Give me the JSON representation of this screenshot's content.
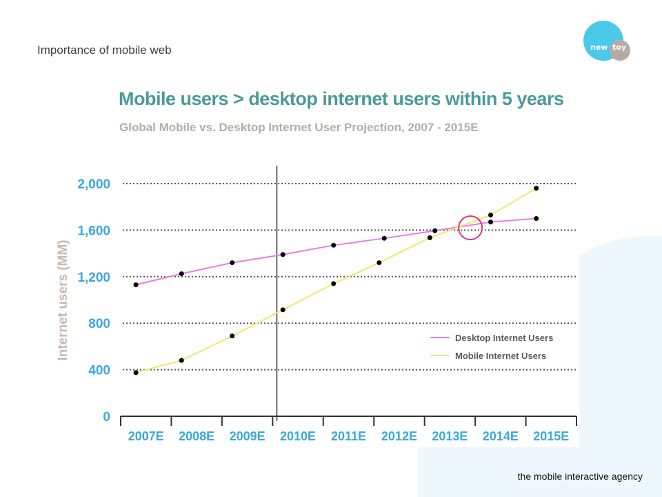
{
  "slide": {
    "title": "Importance of mobile web",
    "footer": "the mobile interactive agency"
  },
  "logo": {
    "word1": "new",
    "word2": "toy"
  },
  "colors": {
    "accent_teal": "#4a9a9a",
    "axis_blue": "#3aa8dc",
    "ylabel_gray": "#c5b9b1",
    "desktop_line": "#e87ce8",
    "mobile_line": "#f5e56a",
    "highlight_circle": "#e6336e",
    "background_shape": "#eef7fb"
  },
  "chart_data": {
    "type": "line",
    "title": "Mobile users > desktop internet users within 5 years",
    "subtitle": "Global Mobile vs. Desktop Internet User Projection, 2007 - 2015E",
    "xlabel": "",
    "ylabel": "Internet users (MM)",
    "categories": [
      "2007E",
      "2008E",
      "2009E",
      "2010E",
      "2011E",
      "2012E",
      "2013E",
      "2014E",
      "2015E"
    ],
    "ylim": [
      0,
      2000
    ],
    "yticks": [
      "0",
      "400",
      "800",
      "1,200",
      "1,600",
      "2,000"
    ],
    "ytick_values": [
      0,
      400,
      800,
      1200,
      1600,
      2000
    ],
    "grid": true,
    "legend_position": "bottom-right",
    "series": [
      {
        "name": "Desktop Internet Users",
        "color": "#e87ce8",
        "x": [
          2007.3,
          2008.2,
          2009.2,
          2010.2,
          2011.2,
          2012.2,
          2013.2,
          2014.3,
          2015.2
        ],
        "values": [
          1130,
          1225,
          1320,
          1390,
          1470,
          1530,
          1595,
          1670,
          1700
        ]
      },
      {
        "name": "Mobile Internet Users",
        "color": "#f5e56a",
        "x": [
          2007.3,
          2008.2,
          2009.2,
          2010.2,
          2011.2,
          2012.1,
          2013.1,
          2014.3,
          2015.2
        ],
        "values": [
          375,
          480,
          690,
          915,
          1140,
          1320,
          1535,
          1730,
          1960
        ]
      }
    ],
    "annotations": [
      {
        "type": "circle",
        "x": 2013.9,
        "y": 1620,
        "note": "crossover"
      },
      {
        "type": "vertical-line",
        "x": 2010.0
      }
    ]
  }
}
